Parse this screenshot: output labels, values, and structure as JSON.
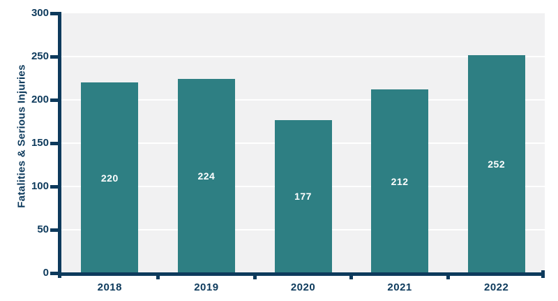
{
  "chart_data": {
    "type": "bar",
    "categories": [
      "2018",
      "2019",
      "2020",
      "2021",
      "2022"
    ],
    "values": [
      220,
      224,
      177,
      212,
      252
    ],
    "title": "",
    "xlabel": "",
    "ylabel": "Fatalities & Serious Injuries",
    "ylim": [
      0,
      300
    ],
    "yticks": [
      0,
      50,
      100,
      150,
      200,
      250,
      300
    ],
    "grid": true,
    "legend": false,
    "bar_value_labels_visible": true
  },
  "colors": {
    "bar": "#2e7f83",
    "axis": "#0d3a5c",
    "plot_background": "#f1f1f2",
    "gridline": "#ffffff",
    "bar_label_text": "#ffffff",
    "page_background": "#ffffff"
  }
}
